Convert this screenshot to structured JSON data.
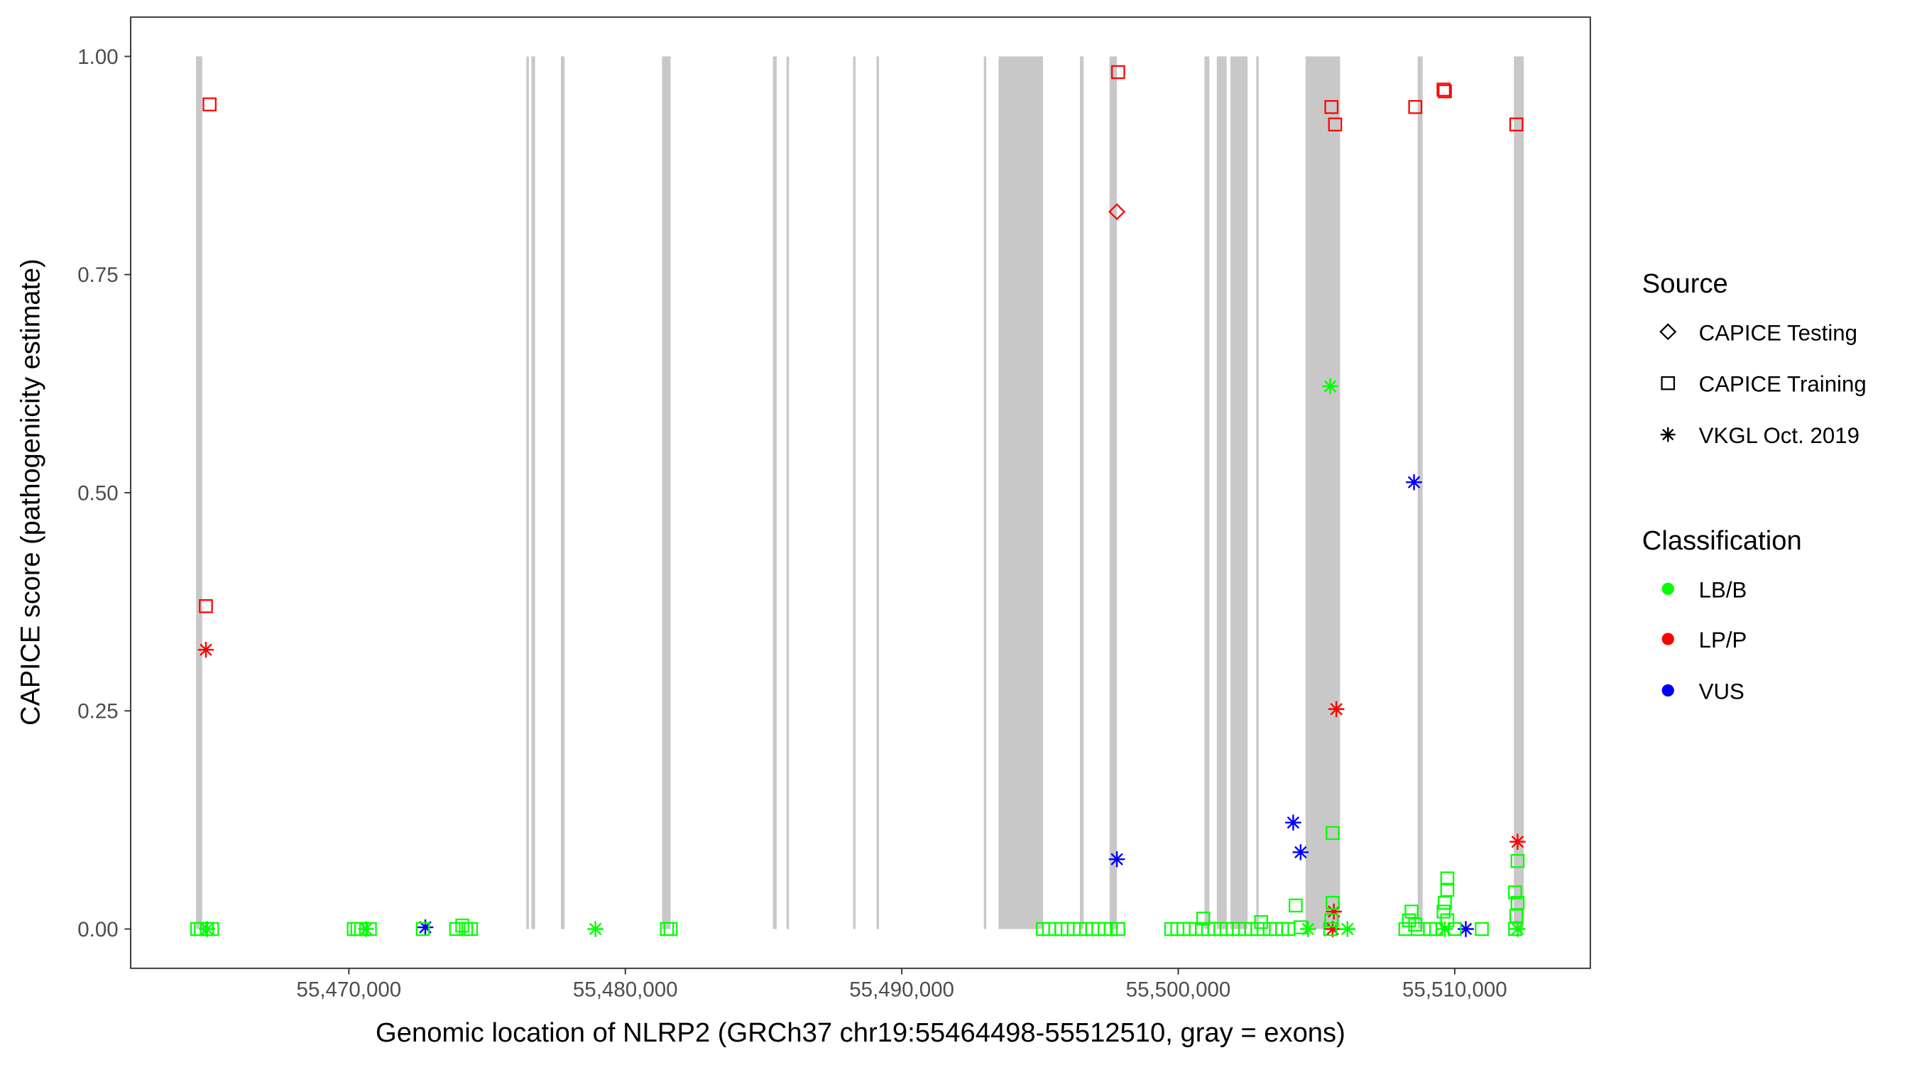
{
  "chart_data": {
    "type": "scatter",
    "xlabel": "Genomic location of NLRP2 (GRCh37 chr19:55464498-55512510, gray = exons)",
    "ylabel": "CAPICE score (pathogenicity estimate)",
    "xlim": [
      55462107,
      55514905
    ],
    "ylim": [
      -0.045,
      1.045
    ],
    "x_ticks": [
      55470000,
      55480000,
      55490000,
      55500000,
      55510000
    ],
    "x_tick_labels": [
      "55,470,000",
      "55,480,000",
      "55,490,000",
      "55,500,000",
      "55,510,000"
    ],
    "y_ticks": [
      0,
      0.25,
      0.5,
      0.75,
      1.0
    ],
    "y_tick_labels": [
      "0.00",
      "0.25",
      "0.50",
      "0.75",
      "1.00"
    ],
    "grid": false,
    "legend_placement": "right",
    "legend": {
      "source_title": "Source",
      "source_items": [
        {
          "label": "CAPICE Testing",
          "shape": "diamond"
        },
        {
          "label": "CAPICE Training",
          "shape": "square"
        },
        {
          "label": "VKGL Oct. 2019",
          "shape": "asterisk"
        }
      ],
      "class_title": "Classification",
      "class_items": [
        {
          "label": "LB/B",
          "color": "#00FF00"
        },
        {
          "label": "LP/P",
          "color": "#FF0000"
        },
        {
          "label": "VUS",
          "color": "#0000FF"
        }
      ]
    },
    "exon_color": "#C8C8C8",
    "exons": [
      [
        55464470,
        55464693
      ],
      [
        55476421,
        55476511
      ],
      [
        55476600,
        55476734
      ],
      [
        55477670,
        55477804
      ],
      [
        55481327,
        55481639
      ],
      [
        55485340,
        55485474
      ],
      [
        55485831,
        55485920
      ],
      [
        55488239,
        55488328
      ],
      [
        55489086,
        55489175
      ],
      [
        55492965,
        55493054
      ],
      [
        55493500,
        55495106
      ],
      [
        55496444,
        55496578
      ],
      [
        55497514,
        55497781
      ],
      [
        55500948,
        55501126
      ],
      [
        55501394,
        55501751
      ],
      [
        55501884,
        55502508
      ],
      [
        55502820,
        55502910
      ],
      [
        55504604,
        55505853
      ],
      [
        55508662,
        55508840
      ],
      [
        55512140,
        55512497
      ]
    ],
    "points_columns": [
      "position",
      "score",
      "source",
      "classification"
    ],
    "points": [
      [
        55464961,
        0.945,
        "CAPICE Training",
        "LP/P"
      ],
      [
        55464827,
        0.37,
        "CAPICE Training",
        "LP/P"
      ],
      [
        55497826,
        0.982,
        "CAPICE Training",
        "LP/P"
      ],
      [
        55505541,
        0.942,
        "CAPICE Training",
        "LP/P"
      ],
      [
        55505674,
        0.922,
        "CAPICE Training",
        "LP/P"
      ],
      [
        55508573,
        0.942,
        "CAPICE Training",
        "LP/P"
      ],
      [
        55509598,
        0.962,
        "CAPICE Training",
        "LP/P"
      ],
      [
        55509643,
        0.96,
        "CAPICE Training",
        "LP/P"
      ],
      [
        55512230,
        0.922,
        "CAPICE Training",
        "LP/P"
      ],
      [
        55497781,
        0.822,
        "CAPICE Testing",
        "LP/P"
      ],
      [
        55464827,
        0.32,
        "VKGL Oct. 2019",
        "LP/P"
      ],
      [
        55505719,
        0.252,
        "VKGL Oct. 2019",
        "LP/P"
      ],
      [
        55505630,
        0.02,
        "VKGL Oct. 2019",
        "LP/P"
      ],
      [
        55505585,
        0.0,
        "VKGL Oct. 2019",
        "LP/P"
      ],
      [
        55512274,
        0.1,
        "VKGL Oct. 2019",
        "LP/P"
      ],
      [
        55505496,
        0.622,
        "VKGL Oct. 2019",
        "LB/B"
      ],
      [
        55478919,
        0.0,
        "VKGL Oct. 2019",
        "LB/B"
      ],
      [
        55504693,
        0.0,
        "VKGL Oct. 2019",
        "LB/B"
      ],
      [
        55506120,
        0.0,
        "VKGL Oct. 2019",
        "LB/B"
      ],
      [
        55509643,
        0.0,
        "VKGL Oct. 2019",
        "LB/B"
      ],
      [
        55470624,
        0.0,
        "VKGL Oct. 2019",
        "LB/B"
      ],
      [
        55464872,
        0.0,
        "VKGL Oct. 2019",
        "LB/B"
      ],
      [
        55512274,
        0.0,
        "VKGL Oct. 2019",
        "LB/B"
      ],
      [
        55508528,
        0.512,
        "VKGL Oct. 2019",
        "VUS"
      ],
      [
        55497781,
        0.08,
        "VKGL Oct. 2019",
        "VUS"
      ],
      [
        55504158,
        0.122,
        "VKGL Oct. 2019",
        "VUS"
      ],
      [
        55504426,
        0.088,
        "VKGL Oct. 2019",
        "VUS"
      ],
      [
        55472765,
        0.002,
        "VKGL Oct. 2019",
        "VUS"
      ],
      [
        55510401,
        0.0,
        "VKGL Oct. 2019",
        "VUS"
      ],
      [
        55464515,
        0.0,
        "CAPICE Training",
        "LB/B"
      ],
      [
        55464649,
        0.0,
        "CAPICE Training",
        "LB/B"
      ],
      [
        55464872,
        0.0,
        "CAPICE Training",
        "LB/B"
      ],
      [
        55465050,
        0.0,
        "CAPICE Training",
        "LB/B"
      ],
      [
        55470178,
        0.0,
        "CAPICE Training",
        "LB/B"
      ],
      [
        55470312,
        0.0,
        "CAPICE Training",
        "LB/B"
      ],
      [
        55470446,
        0.0,
        "CAPICE Training",
        "LB/B"
      ],
      [
        55470758,
        0.0,
        "CAPICE Training",
        "LB/B"
      ],
      [
        55472676,
        0.0,
        "CAPICE Training",
        "LB/B"
      ],
      [
        55473880,
        0.0,
        "CAPICE Training",
        "LB/B"
      ],
      [
        55474103,
        0.004,
        "CAPICE Training",
        "LB/B"
      ],
      [
        55474236,
        0.0,
        "CAPICE Training",
        "LB/B"
      ],
      [
        55474415,
        0.0,
        "CAPICE Training",
        "LB/B"
      ],
      [
        55481505,
        0.0,
        "CAPICE Training",
        "LB/B"
      ],
      [
        55481639,
        0.0,
        "CAPICE Training",
        "LB/B"
      ],
      [
        55495106,
        0.0,
        "CAPICE Training",
        "LB/B"
      ],
      [
        55495329,
        0.0,
        "CAPICE Training",
        "LB/B"
      ],
      [
        55495552,
        0.0,
        "CAPICE Training",
        "LB/B"
      ],
      [
        55495775,
        0.0,
        "CAPICE Training",
        "LB/B"
      ],
      [
        55495998,
        0.0,
        "CAPICE Training",
        "LB/B"
      ],
      [
        55496221,
        0.0,
        "CAPICE Training",
        "LB/B"
      ],
      [
        55496444,
        0.0,
        "CAPICE Training",
        "LB/B"
      ],
      [
        55496667,
        0.0,
        "CAPICE Training",
        "LB/B"
      ],
      [
        55496890,
        0.0,
        "CAPICE Training",
        "LB/B"
      ],
      [
        55497113,
        0.0,
        "CAPICE Training",
        "LB/B"
      ],
      [
        55497336,
        0.0,
        "CAPICE Training",
        "LB/B"
      ],
      [
        55497559,
        0.0,
        "CAPICE Training",
        "LB/B"
      ],
      [
        55497826,
        0.0,
        "CAPICE Training",
        "LB/B"
      ],
      [
        55499744,
        0.0,
        "CAPICE Training",
        "LB/B"
      ],
      [
        55499967,
        0.0,
        "CAPICE Training",
        "LB/B"
      ],
      [
        55500190,
        0.0,
        "CAPICE Training",
        "LB/B"
      ],
      [
        55500413,
        0.0,
        "CAPICE Training",
        "LB/B"
      ],
      [
        55500636,
        0.0,
        "CAPICE Training",
        "LB/B"
      ],
      [
        55500859,
        0.0,
        "CAPICE Training",
        "LB/B"
      ],
      [
        55501082,
        0.0,
        "CAPICE Training",
        "LB/B"
      ],
      [
        55501305,
        0.0,
        "CAPICE Training",
        "LB/B"
      ],
      [
        55501528,
        0.0,
        "CAPICE Training",
        "LB/B"
      ],
      [
        55501751,
        0.0,
        "CAPICE Training",
        "LB/B"
      ],
      [
        55501974,
        0.0,
        "CAPICE Training",
        "LB/B"
      ],
      [
        55502197,
        0.0,
        "CAPICE Training",
        "LB/B"
      ],
      [
        55502420,
        0.0,
        "CAPICE Training",
        "LB/B"
      ],
      [
        55502643,
        0.0,
        "CAPICE Training",
        "LB/B"
      ],
      [
        55502866,
        0.0,
        "CAPICE Training",
        "LB/B"
      ],
      [
        55503089,
        0.0,
        "CAPICE Training",
        "LB/B"
      ],
      [
        55503312,
        0.0,
        "CAPICE Training",
        "LB/B"
      ],
      [
        55503535,
        0.0,
        "CAPICE Training",
        "LB/B"
      ],
      [
        55503758,
        0.0,
        "CAPICE Training",
        "LB/B"
      ],
      [
        55503981,
        0.0,
        "CAPICE Training",
        "LB/B"
      ],
      [
        55500903,
        0.012,
        "CAPICE Training",
        "LB/B"
      ],
      [
        55502999,
        0.008,
        "CAPICE Training",
        "LB/B"
      ],
      [
        55504247,
        0.027,
        "CAPICE Training",
        "LB/B"
      ],
      [
        55504426,
        0.002,
        "CAPICE Training",
        "LB/B"
      ],
      [
        55505585,
        0.11,
        "CAPICE Training",
        "LB/B"
      ],
      [
        55505585,
        0.03,
        "CAPICE Training",
        "LB/B"
      ],
      [
        55505541,
        0.01,
        "CAPICE Training",
        "LB/B"
      ],
      [
        55505496,
        0.0,
        "CAPICE Training",
        "LB/B"
      ],
      [
        55508216,
        0.0,
        "CAPICE Training",
        "LB/B"
      ],
      [
        55508350,
        0.01,
        "CAPICE Training",
        "LB/B"
      ],
      [
        55508439,
        0.02,
        "CAPICE Training",
        "LB/B"
      ],
      [
        55508573,
        0.005,
        "CAPICE Training",
        "LB/B"
      ],
      [
        55508662,
        0.0,
        "CAPICE Training",
        "LB/B"
      ],
      [
        55509108,
        0.0,
        "CAPICE Training",
        "LB/B"
      ],
      [
        55509331,
        0.0,
        "CAPICE Training",
        "LB/B"
      ],
      [
        55509598,
        0.02,
        "CAPICE Training",
        "LB/B"
      ],
      [
        55509643,
        0.03,
        "CAPICE Training",
        "LB/B"
      ],
      [
        55509732,
        0.058,
        "CAPICE Training",
        "LB/B"
      ],
      [
        55509732,
        0.045,
        "CAPICE Training",
        "LB/B"
      ],
      [
        55509732,
        0.01,
        "CAPICE Training",
        "LB/B"
      ],
      [
        55510000,
        0.0,
        "CAPICE Training",
        "LB/B"
      ],
      [
        55510981,
        0.0,
        "CAPICE Training",
        "LB/B"
      ],
      [
        55512185,
        0.042,
        "CAPICE Training",
        "LB/B"
      ],
      [
        55512274,
        0.078,
        "CAPICE Training",
        "LB/B"
      ],
      [
        55512274,
        0.03,
        "CAPICE Training",
        "LB/B"
      ],
      [
        55512230,
        0.015,
        "CAPICE Training",
        "LB/B"
      ],
      [
        55512185,
        0.0,
        "CAPICE Training",
        "LB/B"
      ]
    ]
  }
}
